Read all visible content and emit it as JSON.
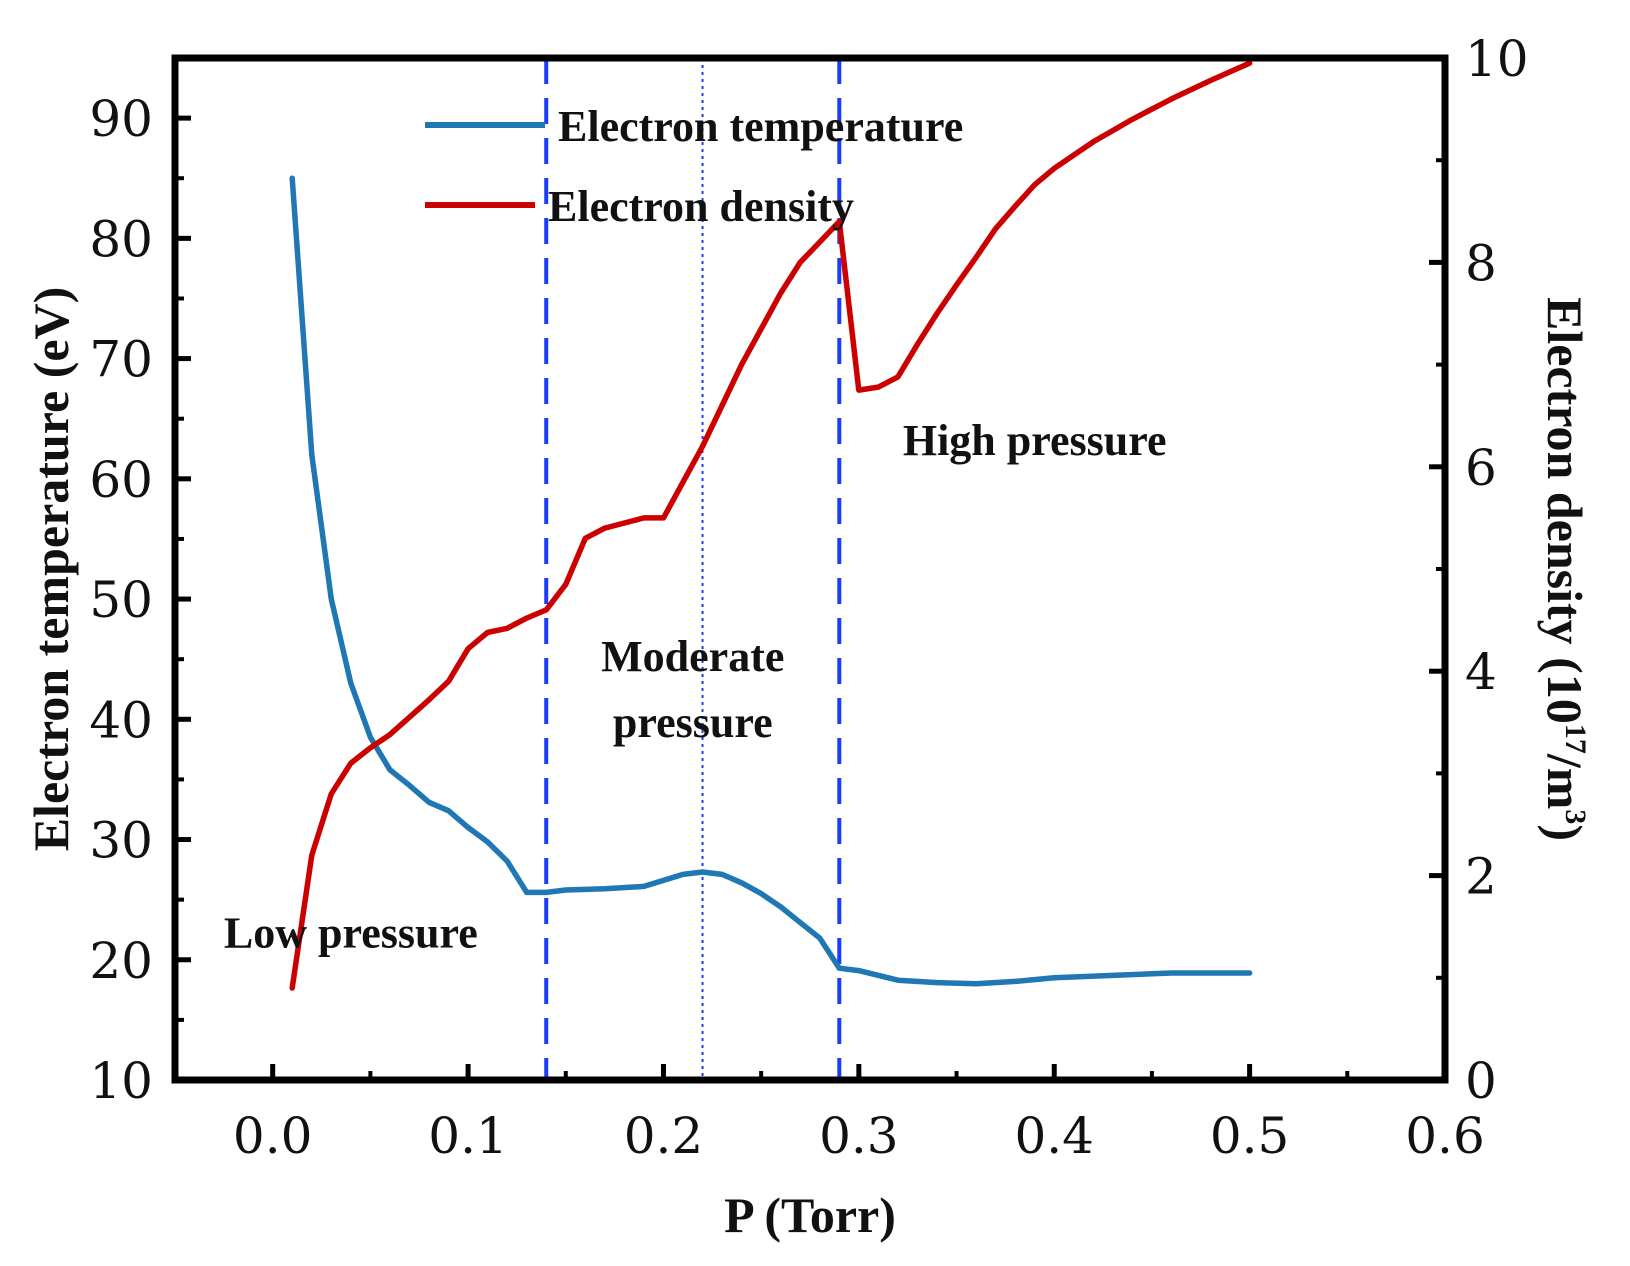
{
  "chart_data": {
    "type": "line",
    "xlabel": "P (Torr)",
    "ylabel_left": "Electron temperature (eV)",
    "ylabel_right": {
      "prefix": "Electron density (10",
      "exp1": "17",
      "mid": "/m",
      "exp2": "3",
      "suffix": ")"
    },
    "xlim": [
      -0.05,
      0.6
    ],
    "ylim_left": [
      10,
      95
    ],
    "ylim_right": [
      0,
      10
    ],
    "x_ticks": [
      "0.0",
      "0.1",
      "0.2",
      "0.3",
      "0.4",
      "0.5",
      "0.6"
    ],
    "x_tick_values": [
      0,
      0.1,
      0.2,
      0.3,
      0.4,
      0.5,
      0.6
    ],
    "y_left_ticks": [
      "10",
      "20",
      "30",
      "40",
      "50",
      "60",
      "70",
      "80",
      "90"
    ],
    "y_left_tick_values": [
      10,
      20,
      30,
      40,
      50,
      60,
      70,
      80,
      90
    ],
    "y_right_ticks": [
      "0",
      "2",
      "4",
      "6",
      "8",
      "10"
    ],
    "y_right_tick_values": [
      0,
      2,
      4,
      6,
      8,
      10
    ],
    "legend": {
      "placement": "top-center",
      "entries": [
        "Electron temperature",
        "Electron density"
      ]
    },
    "series": [
      {
        "name": "Electron temperature",
        "axis": "left",
        "color": "#1f77b4",
        "x": [
          0.01,
          0.02,
          0.03,
          0.04,
          0.05,
          0.06,
          0.07,
          0.08,
          0.09,
          0.1,
          0.11,
          0.12,
          0.13,
          0.14,
          0.15,
          0.17,
          0.19,
          0.21,
          0.22,
          0.23,
          0.24,
          0.25,
          0.26,
          0.27,
          0.28,
          0.29,
          0.3,
          0.32,
          0.34,
          0.36,
          0.38,
          0.4,
          0.43,
          0.46,
          0.5
        ],
        "y": [
          85,
          62,
          50,
          43,
          38.5,
          35.8,
          34.5,
          33.1,
          32.4,
          31.0,
          29.8,
          28.2,
          25.6,
          25.6,
          25.8,
          25.9,
          26.1,
          27.1,
          27.3,
          27.1,
          26.4,
          25.5,
          24.4,
          23.1,
          21.8,
          19.3,
          19.1,
          18.3,
          18.1,
          18.0,
          18.2,
          18.5,
          18.7,
          18.9,
          18.9
        ]
      },
      {
        "name": "Electron density",
        "axis": "right",
        "color": "#cc0000",
        "x": [
          0.01,
          0.02,
          0.03,
          0.04,
          0.05,
          0.06,
          0.07,
          0.08,
          0.09,
          0.1,
          0.11,
          0.12,
          0.13,
          0.14,
          0.15,
          0.16,
          0.17,
          0.18,
          0.19,
          0.2,
          0.21,
          0.22,
          0.23,
          0.24,
          0.25,
          0.26,
          0.27,
          0.28,
          0.29,
          0.3,
          0.31,
          0.32,
          0.33,
          0.34,
          0.35,
          0.36,
          0.37,
          0.38,
          0.39,
          0.4,
          0.42,
          0.44,
          0.46,
          0.48,
          0.5
        ],
        "y": [
          0.9,
          2.2,
          2.8,
          3.1,
          3.25,
          3.38,
          3.55,
          3.72,
          3.9,
          4.22,
          4.38,
          4.42,
          4.52,
          4.6,
          4.85,
          5.3,
          5.4,
          5.45,
          5.5,
          5.5,
          5.85,
          6.2,
          6.6,
          7.0,
          7.35,
          7.7,
          8.0,
          8.2,
          8.4,
          6.75,
          6.78,
          6.88,
          7.2,
          7.5,
          7.78,
          8.05,
          8.33,
          8.55,
          8.76,
          8.92,
          9.18,
          9.4,
          9.6,
          9.78,
          9.95
        ]
      }
    ],
    "boundaries": [
      {
        "x": 0.14,
        "style": "dashed",
        "color": "#1a3cff"
      },
      {
        "x": 0.22,
        "style": "dotted",
        "color": "#1a3cff"
      },
      {
        "x": 0.29,
        "style": "dashed",
        "color": "#1a3cff"
      }
    ],
    "regions": [
      {
        "lines": [
          "Low pressure"
        ],
        "x": 0.04,
        "y": 21
      },
      {
        "lines": [
          "Moderate",
          "pressure"
        ],
        "x": 0.215,
        "y": 44
      },
      {
        "lines": [
          "High pressure"
        ],
        "x": 0.39,
        "y": 62
      }
    ],
    "grid": false
  }
}
